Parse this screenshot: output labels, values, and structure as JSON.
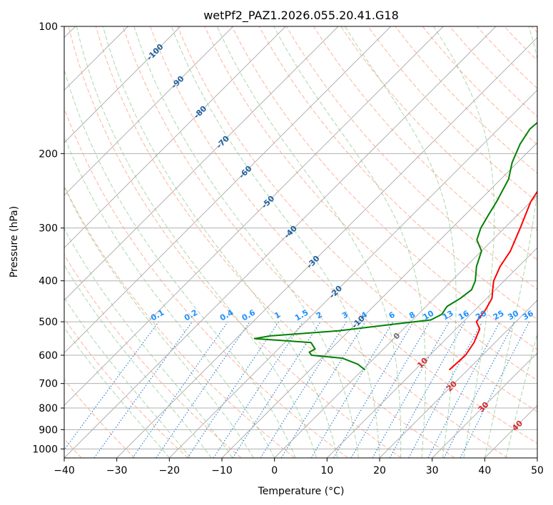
{
  "chart_data": {
    "type": "line",
    "title": "wetPf2_PAZ1.2026.055.20.41.G18",
    "xlabel": "Temperature (°C)",
    "ylabel": "Pressure (hPa)",
    "xlim": [
      -40,
      50
    ],
    "ylim": [
      1050,
      100
    ],
    "y_scale": "log",
    "grid": true,
    "x_ticks": [
      "−40",
      "−30",
      "−20",
      "−10",
      "0",
      "10",
      "20",
      "30",
      "40",
      "50"
    ],
    "x_tick_values": [
      -40,
      -30,
      -20,
      -10,
      0,
      10,
      20,
      30,
      40,
      50
    ],
    "y_ticks": [
      "100",
      "200",
      "300",
      "400",
      "500",
      "600",
      "700",
      "800",
      "900",
      "1000"
    ],
    "y_tick_values": [
      100,
      200,
      300,
      400,
      500,
      600,
      700,
      800,
      900,
      1000
    ],
    "series": [
      {
        "name": "Temperature",
        "color": "#ff0000",
        "points": [
          [
            650,
            16.5
          ],
          [
            600,
            16.8
          ],
          [
            560,
            16.0
          ],
          [
            520,
            14.5
          ],
          [
            500,
            12.5
          ],
          [
            470,
            12.0
          ],
          [
            440,
            11.0
          ],
          [
            420,
            9.5
          ],
          [
            400,
            8.0
          ],
          [
            370,
            6.5
          ],
          [
            340,
            5.5
          ],
          [
            300,
            3.0
          ],
          [
            260,
            0.0
          ],
          [
            230,
            -1.5
          ],
          [
            200,
            -1.5
          ],
          [
            185,
            0.0
          ],
          [
            170,
            2.0
          ],
          [
            150,
            4.0
          ],
          [
            130,
            6.5
          ],
          [
            115,
            8.5
          ],
          [
            105,
            11.0
          ],
          [
            100,
            12.5
          ]
        ]
      },
      {
        "name": "Dewpoint",
        "color": "#008000",
        "points": [
          [
            650,
            0.5
          ],
          [
            630,
            -2.0
          ],
          [
            610,
            -6.0
          ],
          [
            600,
            -12.5
          ],
          [
            590,
            -13.5
          ],
          [
            580,
            -13.0
          ],
          [
            560,
            -15.0
          ],
          [
            548,
            -26.5
          ],
          [
            540,
            -24.0
          ],
          [
            525,
            -12.0
          ],
          [
            505,
            -2.0
          ],
          [
            495,
            3.5
          ],
          [
            480,
            4.5
          ],
          [
            460,
            4.0
          ],
          [
            440,
            5.0
          ],
          [
            420,
            5.5
          ],
          [
            400,
            4.5
          ],
          [
            370,
            2.0
          ],
          [
            340,
            0.0
          ],
          [
            320,
            -3.0
          ],
          [
            300,
            -4.5
          ],
          [
            280,
            -5.5
          ],
          [
            260,
            -6.5
          ],
          [
            230,
            -8.5
          ],
          [
            210,
            -11.0
          ],
          [
            190,
            -13.0
          ],
          [
            175,
            -14.0
          ],
          [
            160,
            -13.5
          ],
          [
            140,
            -10.5
          ],
          [
            120,
            -6.0
          ],
          [
            110,
            -4.5
          ],
          [
            100,
            -4.0
          ]
        ]
      }
    ],
    "isotherm_labels": [
      "-100",
      "-90",
      "-80",
      "-70",
      "-60",
      "-50",
      "-40",
      "-30",
      "-20",
      "-10",
      "0",
      "10",
      "20",
      "30",
      "40"
    ],
    "isotherm_label_values": [
      -100,
      -90,
      -80,
      -70,
      -60,
      -50,
      -40,
      -30,
      -20,
      -10,
      0,
      10,
      20,
      30,
      40
    ],
    "mixing_ratio_labels": [
      "0.1",
      "0.2",
      "0.4",
      "0.6",
      "1",
      "1.5",
      "2",
      "3",
      "4",
      "6",
      "8",
      "10",
      "13",
      "16",
      "20",
      "25",
      "30",
      "36"
    ],
    "mixing_ratio_values": [
      0.1,
      0.2,
      0.4,
      0.6,
      1,
      1.5,
      2,
      3,
      4,
      6,
      8,
      10,
      13,
      16,
      20,
      25,
      30,
      36
    ],
    "colors": {
      "isotherm": "#b0b0b0",
      "dry_adiabat": "#ff9a7a",
      "moist_adiabat": "#7ec27e",
      "mixing_ratio": "#1e78d0",
      "isotherm_label_cold": "#1f5f9e",
      "isotherm_label_warm": "#d62728",
      "isotherm_label_zero": "#707070",
      "mixing_label": "#1e90ff",
      "temperature": "#ff0000",
      "dewpoint": "#008000"
    }
  }
}
